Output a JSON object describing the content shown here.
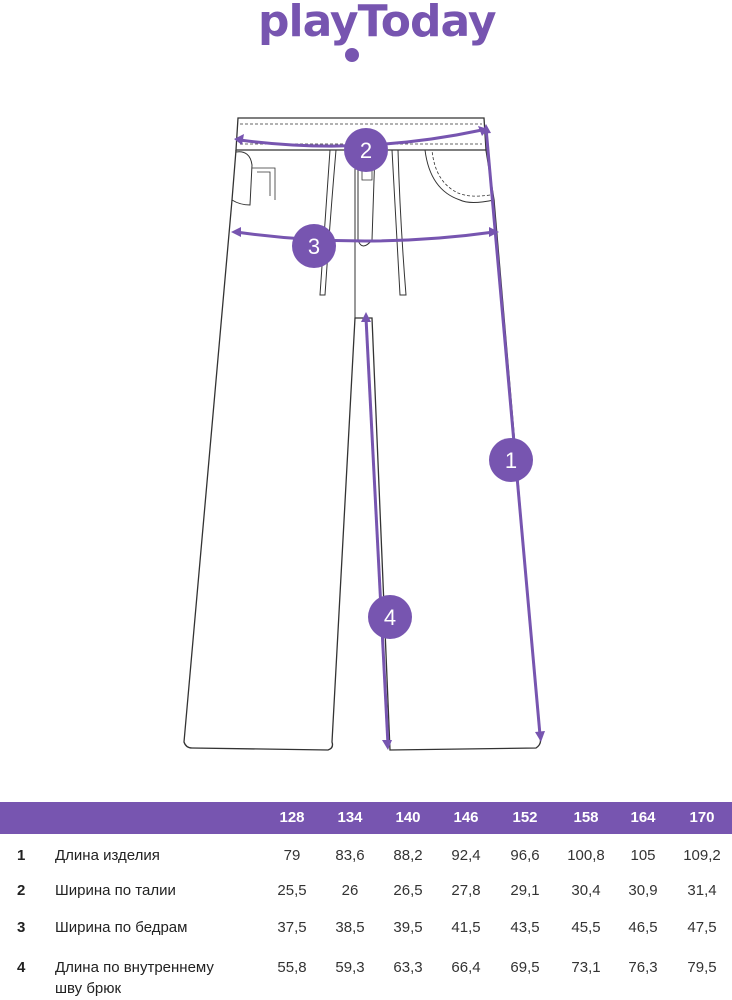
{
  "logo": "playToday",
  "accent": "#7755b0",
  "markers": [
    "1",
    "2",
    "3",
    "4"
  ],
  "table": {
    "sizes": [
      "128",
      "134",
      "140",
      "146",
      "152",
      "158",
      "164",
      "170"
    ],
    "rows": [
      {
        "n": "1",
        "label": "Длина изделия",
        "values": [
          "79",
          "83,6",
          "88,2",
          "92,4",
          "96,6",
          "100,8",
          "105",
          "109,2"
        ]
      },
      {
        "n": "2",
        "label": "Ширина по талии",
        "values": [
          "25,5",
          "26",
          "26,5",
          "27,8",
          "29,1",
          "30,4",
          "30,9",
          "31,4"
        ]
      },
      {
        "n": "3",
        "label": "Ширина по бедрам",
        "values": [
          "37,5",
          "38,5",
          "39,5",
          "41,5",
          "43,5",
          "45,5",
          "46,5",
          "47,5"
        ]
      },
      {
        "n": "4",
        "label": "Длина по внутреннему шву брюк",
        "values": [
          "55,8",
          "59,3",
          "63,3",
          "66,4",
          "69,5",
          "73,1",
          "76,3",
          "79,5"
        ]
      }
    ]
  }
}
